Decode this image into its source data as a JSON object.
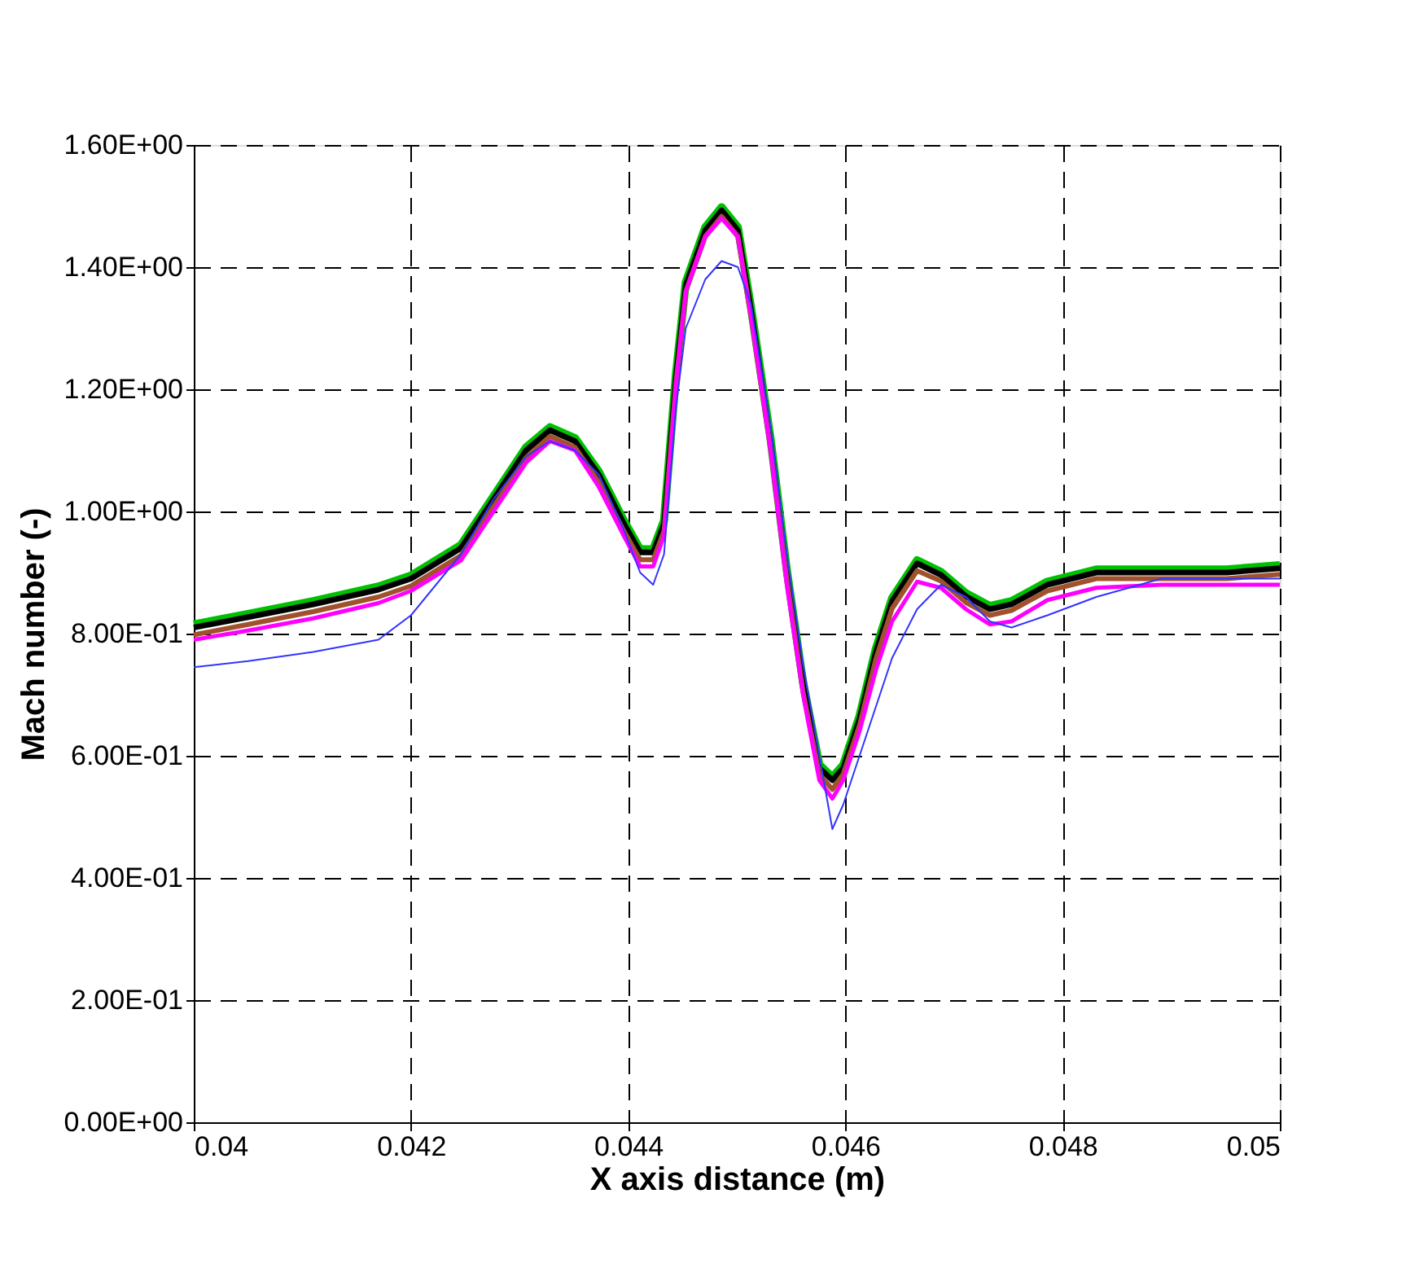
{
  "chart_data": {
    "type": "line",
    "xlabel": "X axis distance (m)",
    "ylabel": "Mach number (-)",
    "x": [
      0.04,
      0.0405,
      0.0411,
      0.0417,
      0.042,
      0.04246,
      0.04276,
      0.04306,
      0.04328,
      0.04351,
      0.04373,
      0.04396,
      0.04411,
      0.04423,
      0.04433,
      0.04444,
      0.04453,
      0.04471,
      0.04486,
      0.04501,
      0.04513,
      0.04531,
      0.04546,
      0.04561,
      0.04576,
      0.04588,
      0.04598,
      0.04613,
      0.04628,
      0.04643,
      0.04666,
      0.04688,
      0.04711,
      0.04733,
      0.04753,
      0.04786,
      0.04831,
      0.04891,
      0.04951,
      0.05
    ],
    "series": [
      {
        "color": "#00c000",
        "values": [
          0.815,
          0.832,
          0.853,
          0.877,
          0.895,
          0.945,
          1.025,
          1.105,
          1.138,
          1.12,
          1.065,
          0.985,
          0.938,
          0.938,
          0.985,
          1.225,
          1.375,
          1.465,
          1.498,
          1.465,
          1.335,
          1.12,
          0.905,
          0.72,
          0.585,
          0.565,
          0.585,
          0.665,
          0.775,
          0.858,
          0.92,
          0.901,
          0.866,
          0.845,
          0.853,
          0.885,
          0.905,
          0.905,
          0.905,
          0.912
        ]
      },
      {
        "color": "#000000",
        "values": [
          0.81,
          0.827,
          0.848,
          0.872,
          0.89,
          0.94,
          1.02,
          1.1,
          1.133,
          1.115,
          1.06,
          0.98,
          0.933,
          0.933,
          0.98,
          1.22,
          1.37,
          1.46,
          1.493,
          1.46,
          1.33,
          1.115,
          0.9,
          0.715,
          0.58,
          0.56,
          0.58,
          0.66,
          0.77,
          0.853,
          0.915,
          0.896,
          0.861,
          0.84,
          0.848,
          0.88,
          0.9,
          0.9,
          0.9,
          0.907
        ]
      },
      {
        "color": "#a0522d",
        "values": [
          0.798,
          0.815,
          0.836,
          0.86,
          0.878,
          0.928,
          1.008,
          1.088,
          1.123,
          1.105,
          1.048,
          0.968,
          0.921,
          0.921,
          0.968,
          1.21,
          1.36,
          1.45,
          1.483,
          1.45,
          1.32,
          1.105,
          0.89,
          0.705,
          0.57,
          0.545,
          0.57,
          0.65,
          0.758,
          0.841,
          0.903,
          0.886,
          0.851,
          0.83,
          0.838,
          0.87,
          0.89,
          0.89,
          0.89,
          0.897
        ]
      },
      {
        "color": "#ff00ff",
        "values": [
          0.79,
          0.805,
          0.825,
          0.85,
          0.87,
          0.92,
          1.0,
          1.08,
          1.115,
          1.1,
          1.04,
          0.96,
          0.91,
          0.91,
          0.96,
          1.21,
          1.36,
          1.45,
          1.48,
          1.45,
          1.32,
          1.1,
          0.88,
          0.7,
          0.56,
          0.53,
          0.56,
          0.64,
          0.74,
          0.82,
          0.885,
          0.875,
          0.84,
          0.815,
          0.82,
          0.855,
          0.875,
          0.88,
          0.88,
          0.88
        ]
      },
      {
        "color": "#3333ff",
        "values": [
          0.745,
          0.755,
          0.77,
          0.79,
          0.83,
          0.93,
          1.02,
          1.09,
          1.115,
          1.1,
          1.06,
          0.97,
          0.9,
          0.88,
          0.93,
          1.17,
          1.3,
          1.38,
          1.41,
          1.4,
          1.34,
          1.14,
          0.93,
          0.75,
          0.6,
          0.48,
          0.52,
          0.6,
          0.68,
          0.76,
          0.84,
          0.88,
          0.86,
          0.82,
          0.81,
          0.83,
          0.86,
          0.89,
          0.89,
          0.89
        ]
      }
    ],
    "xlim": [
      0.04,
      0.05
    ],
    "xticks": [
      0.04,
      0.042,
      0.044,
      0.046,
      0.048,
      0.05
    ],
    "ylim": [
      0,
      1.6
    ],
    "yticks": [
      {
        "value": 0,
        "label": "0.00E+00"
      },
      {
        "value": 0.2,
        "label": "2.00E-01"
      },
      {
        "value": 0.4,
        "label": "4.00E-01"
      },
      {
        "value": 0.6,
        "label": "6.00E-01"
      },
      {
        "value": 0.8,
        "label": "8.00E-01"
      },
      {
        "value": 1.0,
        "label": "1.00E+00"
      },
      {
        "value": 1.2,
        "label": "1.20E+00"
      },
      {
        "value": 1.4,
        "label": "1.40E+00"
      },
      {
        "value": 1.6,
        "label": "1.60E+00"
      }
    ],
    "grid": true,
    "legend": false,
    "marker": "none",
    "line_style": "solid"
  }
}
